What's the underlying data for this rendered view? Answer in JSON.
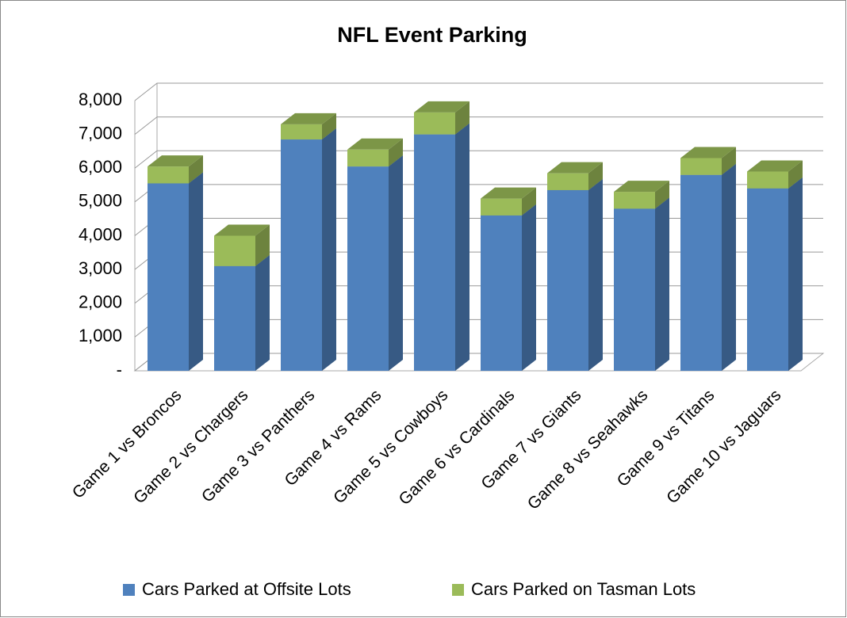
{
  "chart_data": {
    "type": "bar3d_stacked",
    "title": "NFL Event Parking",
    "categories": [
      "Game 1 vs Broncos",
      "Game 2 vs Chargers",
      "Game 3 vs Panthers",
      "Game 4 vs Rams",
      "Game 5 vs Cowboys",
      "Game 6 vs Cardinals",
      "Game 7 vs Giants",
      "Game 8 vs Seahawks",
      "Game 9 vs Titans",
      "Game 10 vs Jaguars"
    ],
    "series": [
      {
        "name": "Cars Parked at Offsite Lots",
        "color": "#4f81bd",
        "values": [
          5550,
          3100,
          6850,
          6050,
          7000,
          4600,
          5350,
          4800,
          5800,
          5400
        ]
      },
      {
        "name": "Cars Parked on Tasman Lots",
        "color": "#9bbb59",
        "values": [
          500,
          900,
          450,
          500,
          650,
          500,
          500,
          500,
          500,
          500
        ]
      }
    ],
    "ylim": [
      0,
      8000
    ],
    "yticks": [
      {
        "value": 0,
        "label": "-"
      },
      {
        "value": 1000,
        "label": "1,000"
      },
      {
        "value": 2000,
        "label": "2,000"
      },
      {
        "value": 3000,
        "label": "3,000"
      },
      {
        "value": 4000,
        "label": "4,000"
      },
      {
        "value": 5000,
        "label": "5,000"
      },
      {
        "value": 6000,
        "label": "6,000"
      },
      {
        "value": 7000,
        "label": "7,000"
      },
      {
        "value": 8000,
        "label": "8,000"
      }
    ],
    "grid": true,
    "legend": "bottom"
  }
}
